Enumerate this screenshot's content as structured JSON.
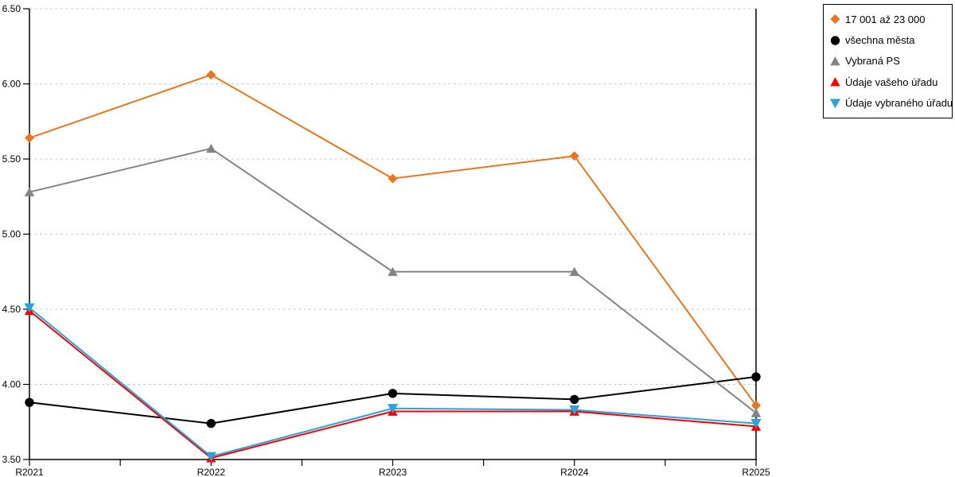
{
  "chart_data": {
    "type": "line",
    "categories": [
      "R2021",
      "R2022",
      "R2023",
      "R2024",
      "R2025"
    ],
    "series": [
      {
        "name": "17 001 až 23 000",
        "marker": "diamond",
        "color": "#E8761F",
        "values": [
          5.64,
          6.06,
          5.37,
          5.52,
          3.86
        ]
      },
      {
        "name": "všechna města",
        "marker": "circle",
        "color": "#000000",
        "values": [
          3.88,
          3.74,
          3.94,
          3.9,
          4.05
        ]
      },
      {
        "name": "Vybraná PS",
        "marker": "triangle-up",
        "color": "#848484",
        "values": [
          5.28,
          5.57,
          4.75,
          4.75,
          3.81
        ]
      },
      {
        "name": "Údaje vašeho úřadu",
        "marker": "triangle-up",
        "color": "#F40000",
        "values": [
          4.49,
          3.51,
          3.82,
          3.82,
          3.72
        ]
      },
      {
        "name": "Údaje vybraného úřadu",
        "marker": "triangle-down",
        "color": "#2AA3DC",
        "values": [
          4.51,
          3.52,
          3.84,
          3.83,
          3.74
        ]
      }
    ],
    "title": "",
    "xlabel": "",
    "ylabel": "",
    "ylim": [
      3.5,
      6.5
    ],
    "ytick_step": 0.5,
    "yticks": [
      "6.50",
      "6.00",
      "5.50",
      "5.00",
      "4.50",
      "4.00",
      "3.50"
    ],
    "grid": "horizontal-dashed",
    "grid_color": "#C8C8C8",
    "axis_color": "#000000",
    "legend_position": "top-right"
  }
}
